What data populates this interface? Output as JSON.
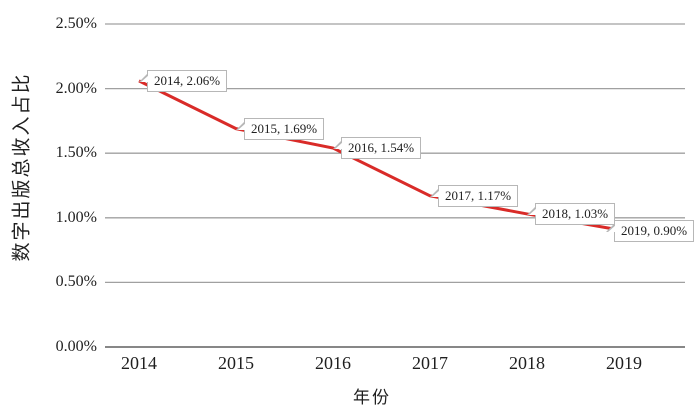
{
  "chart_data": {
    "type": "line",
    "xlabel": "年份",
    "ylabel": "数字出版总收入占比",
    "categories": [
      "2014",
      "2015",
      "2016",
      "2017",
      "2018",
      "2019"
    ],
    "series": [
      {
        "name": "数字出版总收入占比",
        "values": [
          2.06,
          1.69,
          1.54,
          1.17,
          1.03,
          0.9
        ],
        "color": "#d92b28"
      }
    ],
    "data_labels": [
      "2014, 2.06%",
      "2015, 1.69%",
      "2016, 1.54%",
      "2017, 1.17%",
      "2018, 1.03%",
      "2019, 0.90%"
    ],
    "ylim": [
      0,
      2.5
    ],
    "y_tick_step": 0.5,
    "y_tick_labels": [
      "0.00%",
      "0.50%",
      "1.00%",
      "1.50%",
      "2.00%",
      "2.50%"
    ],
    "grid": true,
    "legend": "none",
    "colors": {
      "line": "#d92b28",
      "gridline": "#a0a0a0",
      "axis_line": "#878787",
      "callout_border": "#b7b7b7",
      "text": "#1f1f1f"
    }
  }
}
